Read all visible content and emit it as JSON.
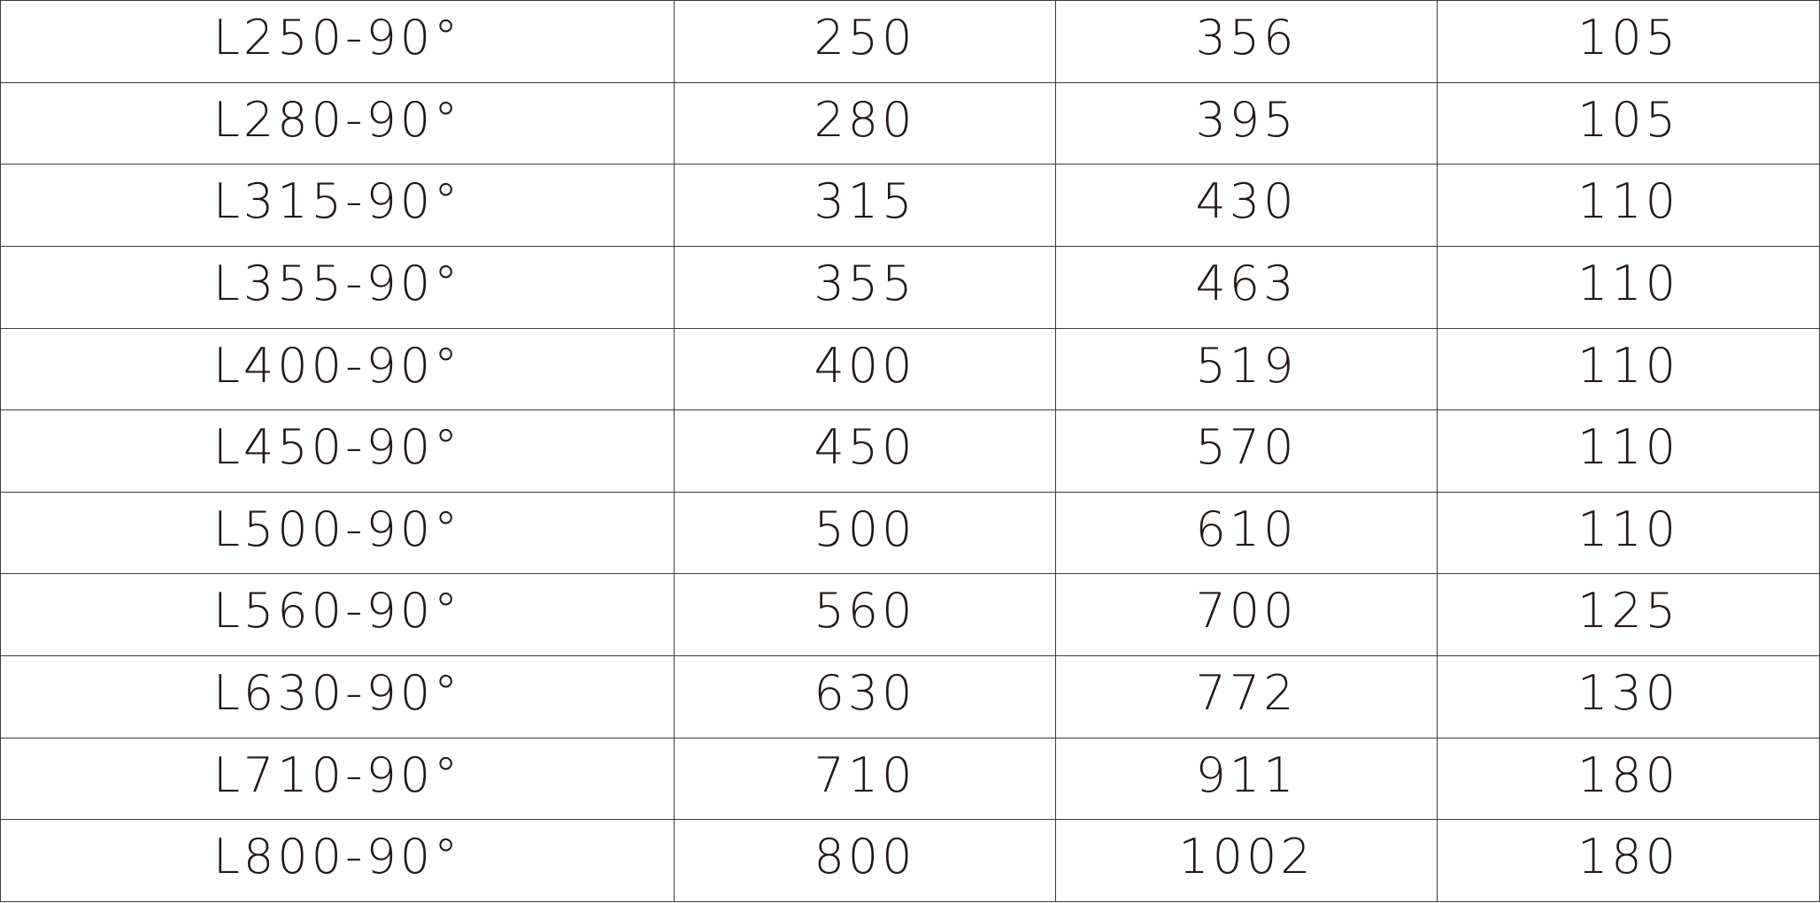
{
  "table": {
    "rows": [
      [
        "L250-90°",
        "250",
        "356",
        "105"
      ],
      [
        "L280-90°",
        "280",
        "395",
        "105"
      ],
      [
        "L315-90°",
        "315",
        "430",
        "110"
      ],
      [
        "L355-90°",
        "355",
        "463",
        "110"
      ],
      [
        "L400-90°",
        "400",
        "519",
        "110"
      ],
      [
        "L450-90°",
        "450",
        "570",
        "110"
      ],
      [
        "L500-90°",
        "500",
        "610",
        "110"
      ],
      [
        "L560-90°",
        "560",
        "700",
        "125"
      ],
      [
        "L630-90°",
        "630",
        "772",
        "130"
      ],
      [
        "L710-90°",
        "710",
        "911",
        "180"
      ],
      [
        "L800-90°",
        "800",
        "1002",
        "180"
      ]
    ]
  }
}
